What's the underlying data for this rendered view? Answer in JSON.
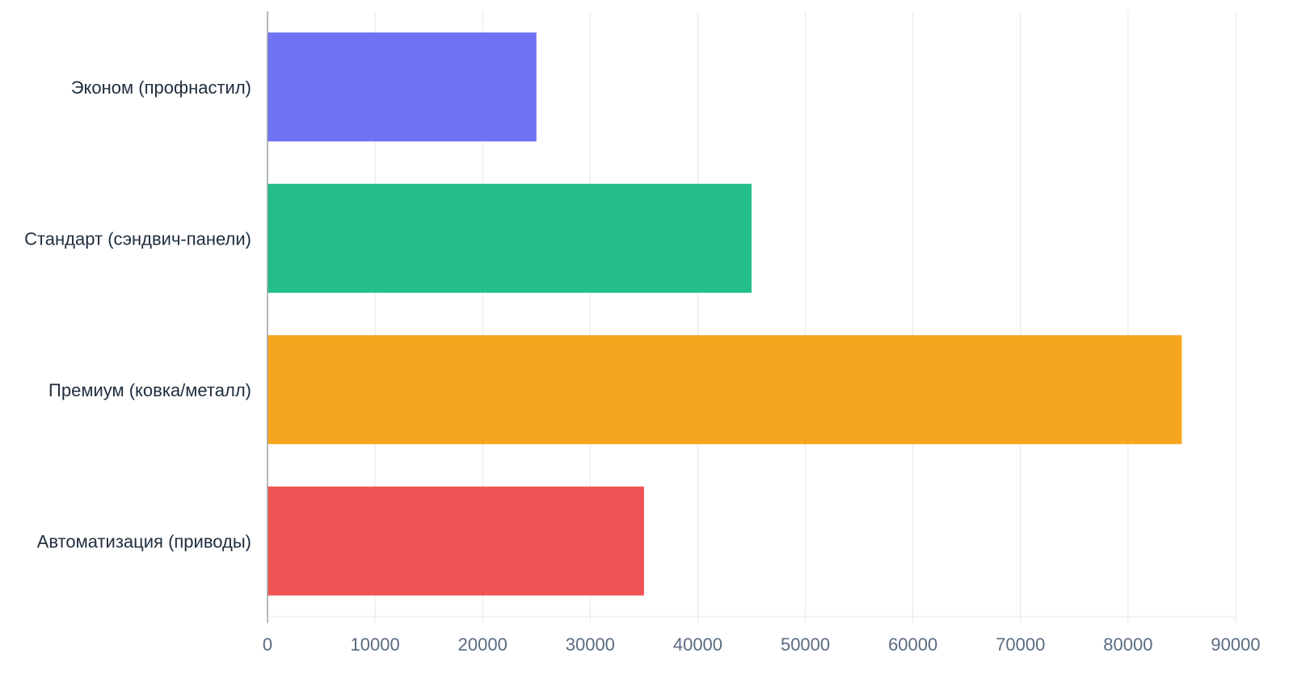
{
  "chart_data": {
    "type": "bar",
    "orientation": "horizontal",
    "title": "",
    "xlabel": "",
    "ylabel": "",
    "categories": [
      "Эконом (профнастил)",
      "Стандарт (сэндвич-панели)",
      "Премиум (ковка/металл)",
      "Автоматизация (приводы)"
    ],
    "values": [
      25000,
      45000,
      85000,
      35000
    ],
    "colors": [
      "#6366f1",
      "#10b981",
      "#f59e0b",
      "#ef4444"
    ],
    "xlim": [
      0,
      90000
    ],
    "xticks": [
      0,
      10000,
      20000,
      30000,
      40000,
      50000,
      60000,
      70000,
      80000,
      90000
    ],
    "grid": true,
    "legend": "none"
  }
}
